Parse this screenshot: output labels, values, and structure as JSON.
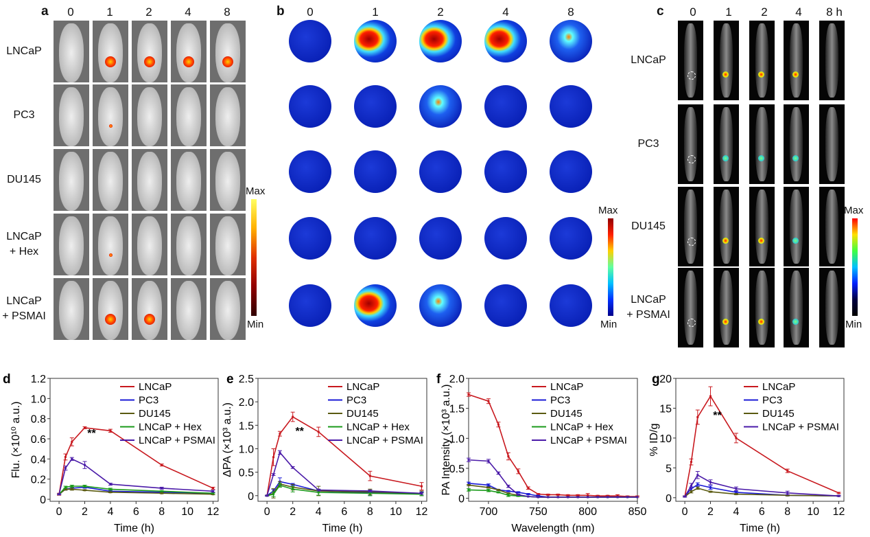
{
  "panel_a": {
    "label": "a",
    "timepoints": [
      "0",
      "1",
      "2",
      "4",
      "8"
    ],
    "rows": [
      "LNCaP",
      "PC3",
      "DU145",
      "LNCaP\n+ Hex",
      "LNCaP\n+ PSMAI"
    ],
    "scale_max": "Max",
    "scale_min": "Min"
  },
  "panel_b": {
    "label": "b",
    "timepoints": [
      "0",
      "1",
      "2",
      "4",
      "8"
    ],
    "scale_max": "Max",
    "scale_min": "Min"
  },
  "panel_c": {
    "label": "c",
    "timepoints": [
      "0",
      "1",
      "2",
      "4",
      "8 h"
    ],
    "rows": [
      "LNCaP",
      "PC3",
      "DU145",
      "LNCaP\n+ PSMAI"
    ],
    "scale_max": "Max",
    "scale_min": "Min"
  },
  "colors": {
    "LNCaP": "#c8181e",
    "PC3": "#1a1ad6",
    "DU145": "#5a5a10",
    "LNCaP + Hex": "#1a9a1a",
    "LNCaP + PSMAI": "#4a1aa8"
  },
  "chart_data": [
    {
      "panel": "d",
      "type": "line",
      "xlabel": "Time (h)",
      "ylabel": "Flu. (×10¹⁰ a.u.)",
      "xlim": [
        -0.7,
        12.4
      ],
      "ylim": [
        -0.02,
        1.2
      ],
      "xticks": [
        0,
        2,
        4,
        6,
        8,
        10,
        12
      ],
      "yticks": [
        0,
        0.2,
        0.4,
        0.6,
        0.8,
        1.0,
        1.2
      ],
      "ytick_labels": [
        "0",
        "0.2",
        "0.4",
        "0.6",
        "0.8",
        "1.0",
        "1.2"
      ],
      "annotation": "**",
      "annotation_at": [
        2.2,
        0.62
      ],
      "legend": "top-right",
      "x": [
        0,
        0.5,
        1,
        2,
        4,
        8,
        12
      ],
      "series": [
        {
          "name": "LNCaP",
          "values": [
            0.05,
            0.42,
            0.57,
            0.71,
            0.68,
            0.34,
            0.11
          ],
          "err": [
            0.01,
            0.03,
            0.04,
            0.01,
            0.015,
            0.01,
            0.01
          ]
        },
        {
          "name": "PC3",
          "values": [
            0.05,
            0.1,
            0.11,
            0.12,
            0.08,
            0.07,
            0.06
          ],
          "err": [
            0.005,
            0.01,
            0.01,
            0.01,
            0.01,
            0.005,
            0.005
          ]
        },
        {
          "name": "DU145",
          "values": [
            0.05,
            0.1,
            0.1,
            0.09,
            0.07,
            0.06,
            0.05
          ],
          "err": [
            0.005,
            0.01,
            0.01,
            0.005,
            0.005,
            0.005,
            0.005
          ]
        },
        {
          "name": "LNCaP + Hex",
          "values": [
            0.05,
            0.12,
            0.13,
            0.13,
            0.1,
            0.08,
            0.06
          ],
          "err": [
            0.005,
            0.01,
            0.01,
            0.01,
            0.01,
            0.005,
            0.005
          ]
        },
        {
          "name": "LNCaP + PSMAI",
          "values": [
            0.05,
            0.31,
            0.4,
            0.34,
            0.15,
            0.11,
            0.08
          ],
          "err": [
            0.005,
            0.02,
            0.015,
            0.035,
            0.01,
            0.01,
            0.01
          ]
        }
      ]
    },
    {
      "panel": "e",
      "type": "line",
      "xlabel": "Time (h)",
      "ylabel": "ΔPA (×10³ a.u.)",
      "xlim": [
        -0.7,
        12.4
      ],
      "ylim": [
        -0.12,
        2.5
      ],
      "xticks": [
        0,
        2,
        4,
        6,
        8,
        10,
        12
      ],
      "yticks": [
        0,
        0.5,
        1.0,
        1.5,
        2.0,
        2.5
      ],
      "ytick_labels": [
        "0",
        "0.5",
        "1.0",
        "1.5",
        "2.0",
        "2.5"
      ],
      "annotation": "**",
      "annotation_at": [
        2.2,
        1.3
      ],
      "legend": "top-right",
      "x": [
        0,
        0.5,
        1,
        2,
        4,
        8,
        12
      ],
      "series": [
        {
          "name": "LNCaP",
          "values": [
            0,
            0.82,
            1.32,
            1.68,
            1.36,
            0.42,
            0.2
          ],
          "err": [
            0.01,
            0.18,
            0.05,
            0.1,
            0.1,
            0.1,
            0.08
          ]
        },
        {
          "name": "PC3",
          "values": [
            0,
            0.1,
            0.3,
            0.24,
            0.1,
            0.06,
            0.04
          ],
          "err": [
            0.01,
            0.03,
            0.08,
            0.02,
            0.03,
            0.06,
            0.04
          ]
        },
        {
          "name": "DU145",
          "values": [
            0,
            0.05,
            0.25,
            0.18,
            0.1,
            0.08,
            0.05
          ],
          "err": [
            0.01,
            0.1,
            0.05,
            0.06,
            0.1,
            0.06,
            0.05
          ]
        },
        {
          "name": "LNCaP + Hex",
          "values": [
            0,
            0.03,
            0.22,
            0.14,
            0.07,
            0.05,
            0.03
          ],
          "err": [
            0.01,
            0.05,
            0.04,
            0.06,
            0.06,
            0.05,
            0.03
          ]
        },
        {
          "name": "LNCaP + PSMAI",
          "values": [
            0,
            0.45,
            0.92,
            0.6,
            0.12,
            0.1,
            0.05
          ],
          "err": [
            0.01,
            0.02,
            0.04,
            0.02,
            0.02,
            0.02,
            0.02
          ]
        }
      ]
    },
    {
      "panel": "f",
      "type": "line",
      "xlabel": "Wavelength (nm)",
      "ylabel": "PA Intensity (×10³ a.u.)",
      "xlim": [
        680,
        850
      ],
      "ylim": [
        -0.05,
        2.0
      ],
      "xticks": [
        700,
        750,
        800,
        850
      ],
      "yticks": [
        0,
        0.5,
        1.0,
        1.5,
        2.0
      ],
      "ytick_labels": [
        "0",
        "0.5",
        "1.0",
        "1.5",
        "2.0"
      ],
      "legend": "top-right",
      "x": [
        680,
        700,
        710,
        720,
        730,
        740,
        750,
        760,
        770,
        780,
        790,
        800,
        810,
        820,
        830,
        840,
        850
      ],
      "series": [
        {
          "name": "LNCaP",
          "values": [
            1.73,
            1.62,
            1.23,
            0.7,
            0.45,
            0.17,
            0.07,
            0.06,
            0.06,
            0.05,
            0.05,
            0.05,
            0.04,
            0.04,
            0.04,
            0.03,
            0.03
          ],
          "err": [
            0.03,
            0.04,
            0.04,
            0.06,
            0.04,
            0.02,
            0.01,
            0.01,
            0.01,
            0.01,
            0.01,
            0.03,
            0.01,
            0.01,
            0.02,
            0.01,
            0.01
          ]
        },
        {
          "name": "PC3",
          "values": [
            0.25,
            0.22,
            0.14,
            0.12,
            0.1,
            0.07,
            0.04,
            0.02,
            0.02,
            0.02,
            0.02,
            0.02,
            0.02,
            0.02,
            0.02,
            0.02,
            0.02
          ],
          "err": [
            0.02,
            0.02,
            0.01,
            0.01,
            0.01,
            0.01,
            0.01,
            0,
            0,
            0,
            0,
            0,
            0,
            0,
            0,
            0,
            0
          ]
        },
        {
          "name": "DU145",
          "values": [
            0.22,
            0.18,
            0.14,
            0.08,
            0.05,
            0.03,
            0.02,
            0.02,
            0.02,
            0.02,
            0.02,
            0.02,
            0.02,
            0.02,
            0.02,
            0.02,
            0.02
          ],
          "err": [
            0.01,
            0.01,
            0.01,
            0.01,
            0.01,
            0,
            0,
            0,
            0,
            0,
            0,
            0,
            0,
            0,
            0,
            0,
            0
          ]
        },
        {
          "name": "LNCaP + Hex",
          "values": [
            0.14,
            0.13,
            0.1,
            0.05,
            0.04,
            0.03,
            0.02,
            0.02,
            0.02,
            0.02,
            0.02,
            0.02,
            0.02,
            0.02,
            0.02,
            0.02,
            0.02
          ],
          "err": [
            0.02,
            0.02,
            0.01,
            0.02,
            0.01,
            0,
            0,
            0,
            0,
            0,
            0,
            0,
            0,
            0,
            0,
            0,
            0
          ]
        },
        {
          "name": "LNCaP + PSMAI",
          "values": [
            0.64,
            0.62,
            0.42,
            0.2,
            0.06,
            0.03,
            0.02,
            0.02,
            0.02,
            0.02,
            0.02,
            0.02,
            0.02,
            0.02,
            0.02,
            0.02,
            0.02
          ],
          "err": [
            0.03,
            0.03,
            0.02,
            0.02,
            0.01,
            0,
            0,
            0,
            0,
            0,
            0,
            0,
            0,
            0,
            0,
            0,
            0
          ]
        }
      ]
    },
    {
      "panel": "g",
      "type": "line",
      "xlabel": "Time (h)",
      "ylabel": "% ID/g",
      "xlim": [
        -0.7,
        12.4
      ],
      "ylim": [
        -0.6,
        20
      ],
      "xticks": [
        0,
        2,
        4,
        6,
        8,
        10,
        12
      ],
      "yticks": [
        0,
        5,
        10,
        15,
        20
      ],
      "ytick_labels": [
        "0",
        "5",
        "10",
        "15",
        "20"
      ],
      "annotation": "**",
      "annotation_at": [
        2.2,
        13.2
      ],
      "legend": "top-right",
      "x": [
        0,
        0.5,
        1,
        2,
        4,
        8,
        12
      ],
      "series": [
        {
          "name": "LNCaP",
          "values": [
            0.2,
            6,
            13.5,
            17,
            10,
            4.5,
            0.8
          ],
          "err": [
            0.1,
            0.5,
            1.2,
            1.6,
            0.8,
            0.3,
            0.1
          ]
        },
        {
          "name": "PC3",
          "values": [
            0.2,
            1.5,
            2.2,
            1.7,
            0.9,
            0.4,
            0.3
          ],
          "err": [
            0.1,
            0.3,
            0.3,
            0.3,
            0.2,
            0.1,
            0.1
          ]
        },
        {
          "name": "DU145",
          "values": [
            0.2,
            1,
            1.6,
            1,
            0.6,
            0.4,
            0.3
          ],
          "err": [
            0.1,
            0.2,
            0.2,
            0.1,
            0.1,
            0.1,
            0.1
          ]
        },
        {
          "name": "LNCaP + PSMAI",
          "values": [
            0.2,
            2,
            3.8,
            2.6,
            1.5,
            0.8,
            0.3
          ],
          "err": [
            0.1,
            0.4,
            0.6,
            0.4,
            0.3,
            0.3,
            0.1
          ]
        }
      ]
    }
  ]
}
